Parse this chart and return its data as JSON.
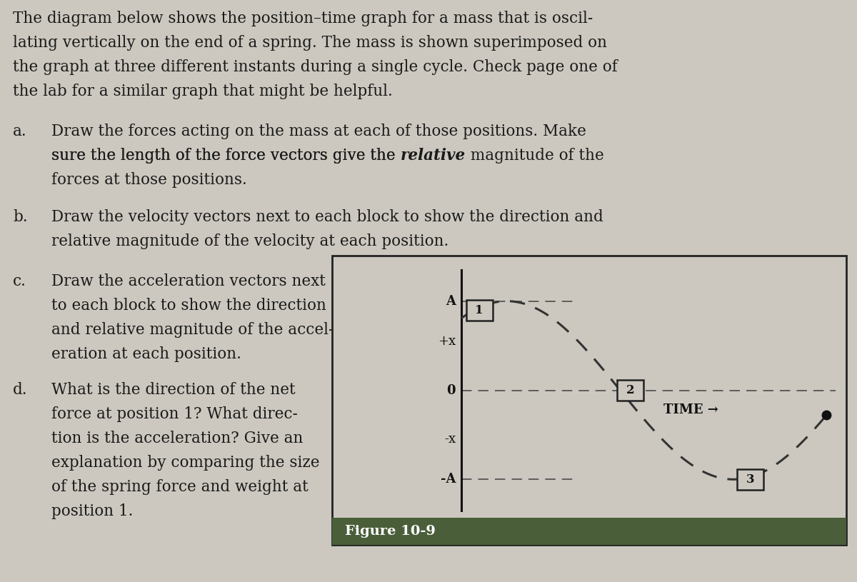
{
  "page_bg": "#ccc8bf",
  "text_color": "#1a1a1a",
  "intro_lines": [
    "The diagram below shows the position–time graph for a mass that is oscil-",
    "lating vertically on the end of a spring. The mass is shown superimposed on",
    "the graph at three different instants during a single cycle. Check page one of",
    "the lab for a similar graph that might be helpful."
  ],
  "item_a_label": "a.",
  "item_a_line1": "Draw the forces acting on the mass at each of those positions. Make",
  "item_a_line2_pre": "sure the length of the force vectors give the ",
  "item_a_line2_italic": "relative",
  "item_a_line2_post": " magnitude of the",
  "item_a_line3": "forces at those positions.",
  "item_b_label": "b.",
  "item_b_line1": "Draw the velocity vectors next to each block to show the direction and",
  "item_b_line2": "relative magnitude of the velocity at each position.",
  "item_c_label": "c.",
  "item_c_lines": [
    "Draw the acceleration vectors next",
    "to each block to show the direction",
    "and relative magnitude of the accel-",
    "eration at each position."
  ],
  "item_d_label": "d.",
  "item_d_lines": [
    "What is the direction of the net",
    "force at position 1? What direc-",
    "tion is the acceleration? Give an",
    "explanation by comparing the size",
    "of the spring force and weight at",
    "position 1."
  ],
  "graph_bg": "#ccc8bf",
  "graph_edge": "#222222",
  "curve_color": "#333333",
  "axis_color": "#111111",
  "dash_color": "#555555",
  "label_A": "A",
  "label_posX": "+x",
  "label_zero": "0",
  "label_negX": "-x",
  "label_negA": "-A",
  "label_time": "TIME →",
  "caption_text": "Figure 10-9",
  "caption_bg": "#4a5e3a",
  "caption_fg": "#ffffff",
  "pos1_label": "1",
  "pos2_label": "2",
  "pos3_label": "3"
}
